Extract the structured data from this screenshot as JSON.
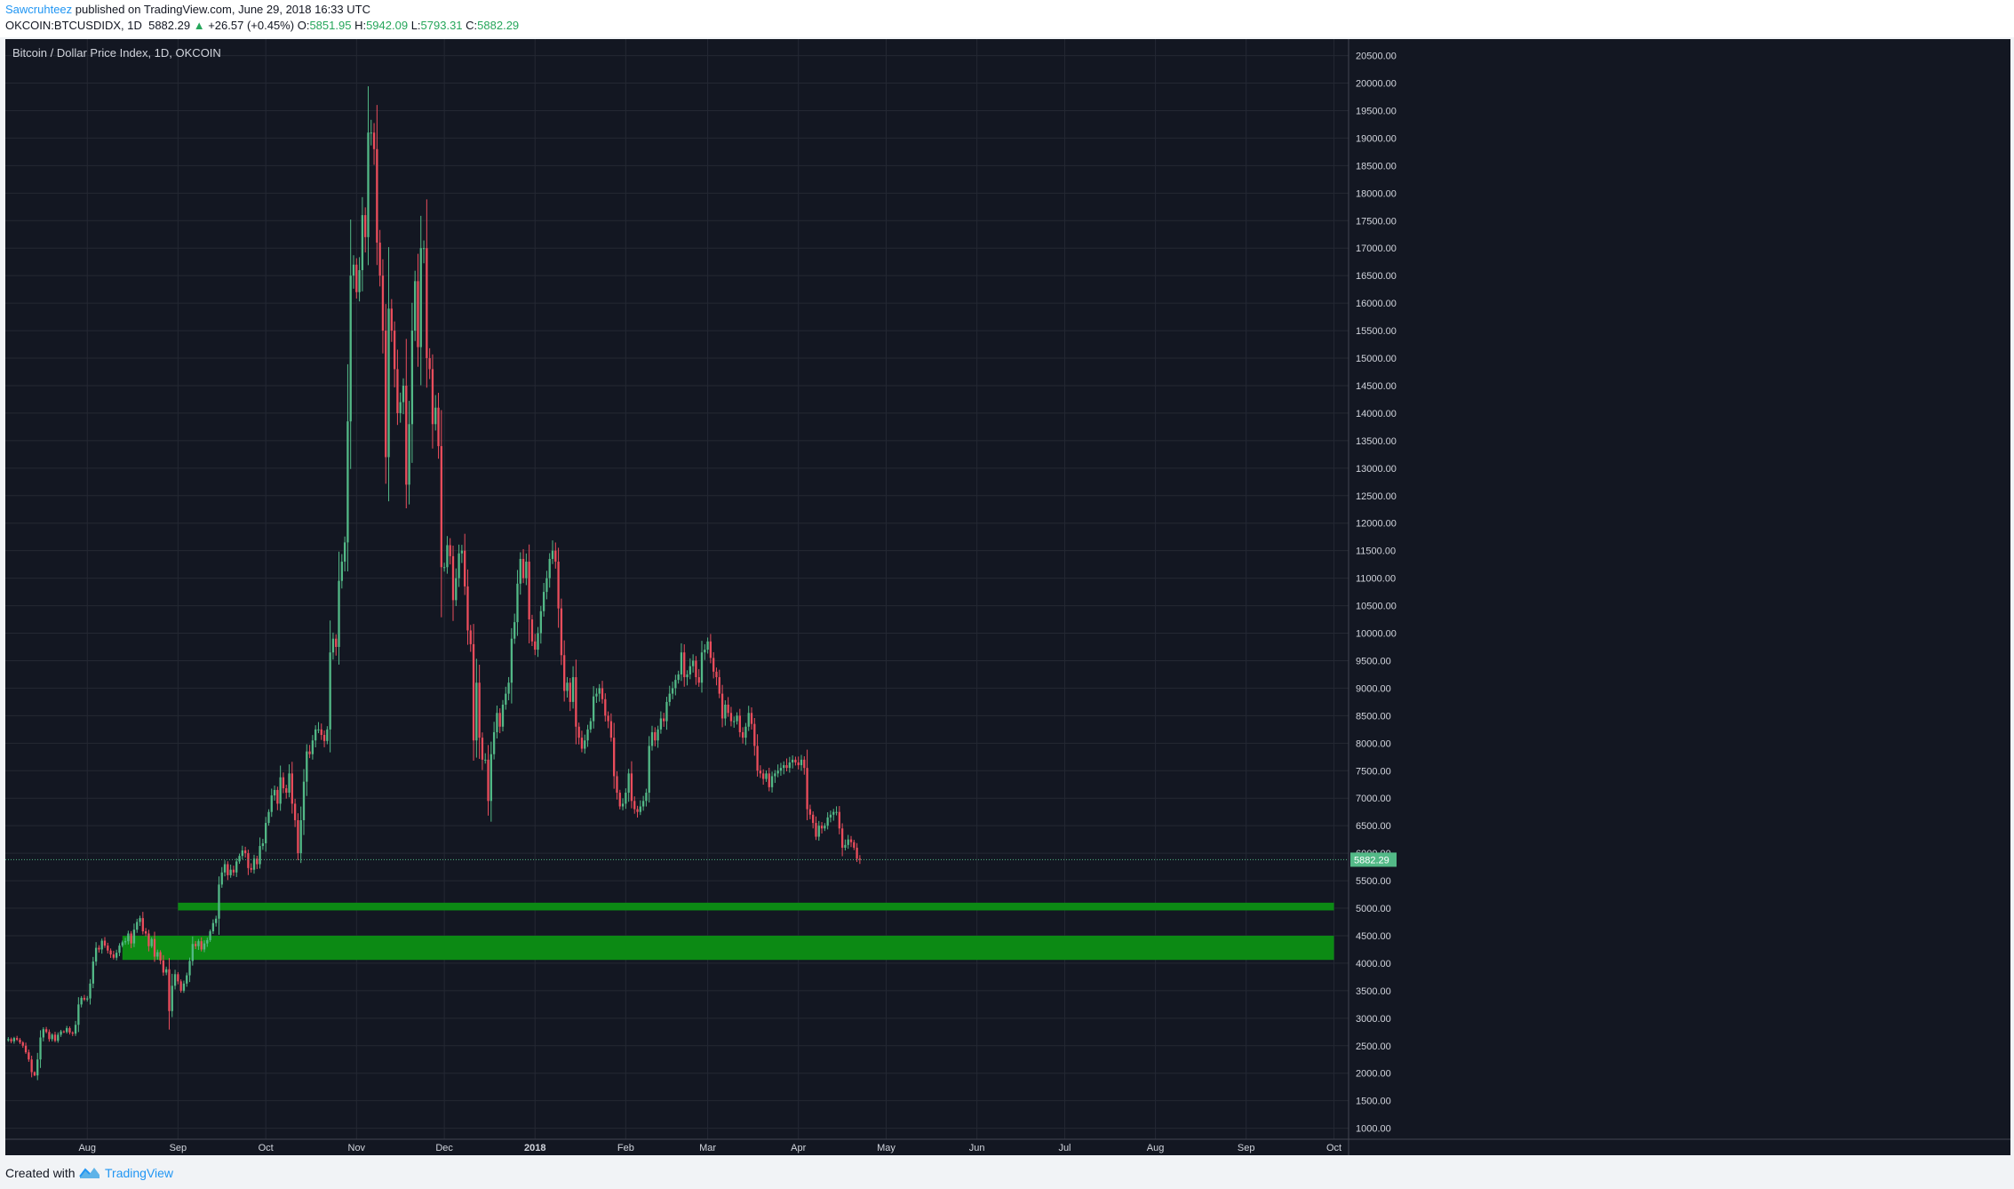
{
  "header": {
    "author": "Sawcruhteez",
    "published": " published on TradingView.com, June 29, 2018 16:33 UTC",
    "symbol": "OKCOIN:BTCUSDIDX, 1D",
    "last": "5882.29",
    "change_arrow": "▲",
    "change": "+26.57 (+0.45%)",
    "o_label": "O:",
    "o_value": "5851.95",
    "h_label": "H:",
    "h_value": "5942.09",
    "l_label": "L:",
    "l_value": "5793.31",
    "c_label": "C:",
    "c_value": "5882.29"
  },
  "footer": {
    "created_with": "Created with",
    "brand": "TradingView"
  },
  "colors": {
    "background": "#131722",
    "up": "#53b987",
    "down": "#eb4d5c",
    "zone": "#0c8a14",
    "grid": "#242833",
    "axis_text": "#d1d4dc",
    "price_tag": "#53b987"
  },
  "chart_data": {
    "type": "candlestick",
    "title": "Bitcoin / Dollar Price Index, 1D, OKCOIN",
    "last_price_label": "5882.29",
    "last_price": 5882.29,
    "ylim": [
      800,
      20800
    ],
    "y_ticks": [
      "1000.00",
      "1500.00",
      "2000.00",
      "2500.00",
      "3000.00",
      "3500.00",
      "4000.00",
      "4500.00",
      "5000.00",
      "5500.00",
      "6000.00",
      "6500.00",
      "7000.00",
      "7500.00",
      "8000.00",
      "8500.00",
      "9000.00",
      "9500.00",
      "10000.00",
      "10500.00",
      "11000.00",
      "11500.00",
      "12000.00",
      "12500.00",
      "13000.00",
      "13500.00",
      "14000.00",
      "14500.00",
      "15000.00",
      "15500.00",
      "16000.00",
      "16500.00",
      "17000.00",
      "17500.00",
      "18000.00",
      "18500.00",
      "19000.00",
      "19500.00",
      "20000.00",
      "20500.00"
    ],
    "x_range": [
      "2017-07-04",
      "2018-10-06"
    ],
    "x_ticks": [
      {
        "label": "Aug",
        "date": "2017-08-01",
        "bold": false
      },
      {
        "label": "Sep",
        "date": "2017-09-01",
        "bold": false
      },
      {
        "label": "Oct",
        "date": "2017-10-01",
        "bold": false
      },
      {
        "label": "Nov",
        "date": "2017-11-01",
        "bold": false
      },
      {
        "label": "Dec",
        "date": "2017-12-01",
        "bold": false
      },
      {
        "label": "2018",
        "date": "2018-01-01",
        "bold": true
      },
      {
        "label": "Feb",
        "date": "2018-02-01",
        "bold": false
      },
      {
        "label": "Mar",
        "date": "2018-03-01",
        "bold": false
      },
      {
        "label": "Apr",
        "date": "2018-04-01",
        "bold": false
      },
      {
        "label": "May",
        "date": "2018-05-01",
        "bold": false
      },
      {
        "label": "Jun",
        "date": "2018-06-01",
        "bold": false
      },
      {
        "label": "Jul",
        "date": "2018-07-01",
        "bold": false
      },
      {
        "label": "Aug",
        "date": "2018-08-01",
        "bold": false
      },
      {
        "label": "Sep",
        "date": "2018-09-01",
        "bold": false
      },
      {
        "label": "Oct",
        "date": "2018-10-01",
        "bold": false
      }
    ],
    "candle_series_start": "2017-07-04",
    "closes": [
      2600,
      2620,
      2580,
      2640,
      2610,
      2560,
      2500,
      2380,
      2250,
      2020,
      1960,
      2250,
      2650,
      2800,
      2750,
      2620,
      2700,
      2590,
      2700,
      2760,
      2750,
      2820,
      2740,
      2720,
      2880,
      3250,
      3370,
      3340,
      3360,
      3630,
      4030,
      4280,
      4250,
      4410,
      4320,
      4230,
      4160,
      4100,
      4190,
      4320,
      4380,
      4400,
      4540,
      4360,
      4610,
      4750,
      4820,
      4580,
      4540,
      4310,
      4440,
      4120,
      4200,
      4050,
      3830,
      3890,
      3130,
      3590,
      3800,
      3670,
      3500,
      3630,
      3780,
      4040,
      4350,
      4310,
      4400,
      4250,
      4360,
      4420,
      4580,
      4730,
      4810,
      5430,
      5650,
      5800,
      5600,
      5700,
      5650,
      5850,
      5950,
      6050,
      6000,
      5730,
      5700,
      5900,
      5800,
      6130,
      6180,
      6550,
      6750,
      7050,
      7150,
      6900,
      7380,
      7180,
      7100,
      7450,
      6900,
      6600,
      6000,
      6600,
      7300,
      7850,
      7800,
      8050,
      8250,
      8250,
      8150,
      8040,
      8250,
      9650,
      9900,
      9750,
      10950,
      11300,
      11650,
      13850,
      16500,
      16700,
      16200,
      16600,
      17600,
      17200,
      19100,
      19100,
      18800,
      17100,
      16500,
      15500,
      13200,
      15900,
      15500,
      14800,
      14000,
      14200,
      14500,
      12700,
      13800,
      15500,
      16400,
      15200,
      17000,
      17000,
      15000,
      14800,
      13800,
      14100,
      13400,
      11200,
      11200,
      11600,
      11400,
      10600,
      11000,
      11450,
      11500,
      10850,
      10050,
      9800,
      8050,
      9100,
      8100,
      7700,
      7700,
      6950,
      7800,
      8200,
      8550,
      8300,
      8700,
      8900,
      9100,
      9900,
      10200,
      10900,
      11350,
      11000,
      11300,
      10250,
      9850,
      9700,
      10000,
      10400,
      10750,
      11000,
      11350,
      11500,
      11300,
      10450,
      9600,
      8950,
      9100,
      8750,
      9200,
      8300,
      8100,
      7900,
      8050,
      8250,
      8400,
      8850,
      8900,
      9000,
      8800,
      8500,
      8400,
      8100,
      7400,
      7100,
      6850,
      6900,
      7100,
      7450,
      6950,
      6800,
      6750,
      6850,
      6950,
      7100,
      7950,
      8200,
      8050,
      8250,
      8450,
      8400,
      8750,
      8900,
      9000,
      9150,
      9250,
      9650,
      9200,
      9250,
      9400,
      9500,
      9200,
      9100,
      9650,
      9700,
      9850,
      9550,
      9300,
      9200,
      8900,
      8450,
      8700,
      8550,
      8400,
      8400,
      8500,
      8200,
      8100,
      8300,
      8550,
      8350,
      7950,
      7500,
      7450,
      7350,
      7450,
      7200,
      7400,
      7450,
      7500,
      7550,
      7600,
      7550,
      7650,
      7700,
      7650,
      7600,
      7700,
      7550,
      6800,
      6700,
      6550,
      6300,
      6500,
      6450,
      6500,
      6650,
      6700,
      6750,
      6750,
      6450,
      6100,
      6150,
      6250,
      6200,
      6100,
      5900,
      5882.29
    ],
    "zones": [
      {
        "name": "upper-support-zone",
        "from": 4960,
        "to": 5100,
        "x_start": "2017-09-01",
        "x_end": "2018-10-01"
      },
      {
        "name": "lower-support-zone",
        "from": 4060,
        "to": 4500,
        "x_start": "2017-08-13",
        "x_end": "2018-10-01"
      }
    ],
    "grid": true,
    "legend": "none"
  }
}
